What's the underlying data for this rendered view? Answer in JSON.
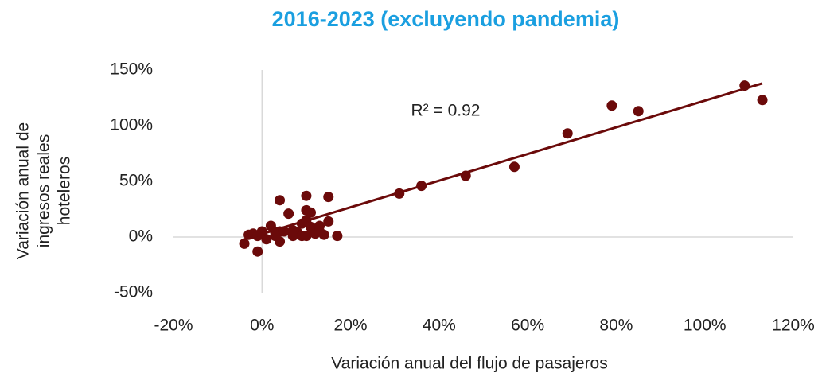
{
  "chart_data": {
    "type": "scatter",
    "title": "2016-2023 (excluyendo pandemia)",
    "x_label": "Variación anual del flujo de pasajeros",
    "y_label": [
      "Variación anual de",
      "ingresos reales",
      "hoteleros"
    ],
    "annotation": "R² = 0.92",
    "color": "#6b0a0a",
    "xlim": [
      -20,
      120
    ],
    "ylim": [
      -50,
      150
    ],
    "xticks": [
      {
        "value": -20,
        "label": "-20%"
      },
      {
        "value": 0,
        "label": "0%"
      },
      {
        "value": 20,
        "label": "20%"
      },
      {
        "value": 40,
        "label": "40%"
      },
      {
        "value": 60,
        "label": "60%"
      },
      {
        "value": 80,
        "label": "80%"
      },
      {
        "value": 100,
        "label": "100%"
      },
      {
        "value": 120,
        "label": "120%"
      }
    ],
    "yticks": [
      {
        "value": -50,
        "label": "-50%"
      },
      {
        "value": 0,
        "label": "0%"
      },
      {
        "value": 50,
        "label": "50%"
      },
      {
        "value": 100,
        "label": "100%"
      },
      {
        "value": 150,
        "label": "150%"
      }
    ],
    "x": [
      109,
      113,
      79,
      85,
      69,
      57,
      46,
      36,
      31,
      15,
      10,
      4,
      6,
      10,
      11,
      15,
      17,
      14,
      -3,
      -4,
      -2,
      -1,
      1,
      2,
      3,
      4,
      5,
      7,
      8,
      9,
      10,
      11,
      12,
      13,
      9,
      7,
      10,
      4,
      0,
      -1,
      3,
      13
    ],
    "y": [
      136,
      123,
      118,
      113,
      93,
      63,
      55,
      46,
      39,
      36,
      37,
      33,
      21,
      24,
      22,
      14,
      1,
      2,
      2,
      -6,
      3,
      -13,
      -2,
      10,
      4,
      -4,
      5,
      6,
      4,
      12,
      15,
      9,
      3,
      10,
      1,
      1,
      1,
      5,
      5,
      1,
      1,
      5
    ],
    "trendline": {
      "x": [
        -4,
        113
      ],
      "y": [
        -2,
        138
      ]
    }
  }
}
